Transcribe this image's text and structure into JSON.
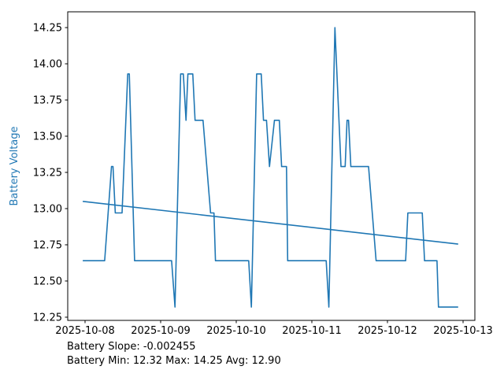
{
  "figure": {
    "background_color": "#ffffff",
    "line_color": "#1f77b4",
    "trend_color": "#1f77b4",
    "axis_color": "#000000"
  },
  "chart_data": {
    "type": "line",
    "title": "",
    "xlabel": "",
    "ylabel": "Battery Voltage",
    "ylabel_color": "#1f77b4",
    "grid": false,
    "legend": "none",
    "x_unit": "days since 2025-10-08",
    "x_tick_days": [
      0,
      1,
      2,
      3,
      4,
      5
    ],
    "x_tick_labels": [
      "2025-10-08",
      "2025-10-09",
      "2025-10-10",
      "2025-10-11",
      "2025-10-12",
      "2025-10-13"
    ],
    "y_ticks": [
      12.25,
      12.5,
      12.75,
      13.0,
      13.25,
      13.5,
      13.75,
      14.0,
      14.25
    ],
    "xlim_days": [
      -0.229,
      5.156
    ],
    "ylim": [
      12.228,
      14.359
    ],
    "voltage_levels": [
      12.32,
      12.64,
      12.97,
      13.29,
      13.61,
      13.93,
      14.25
    ],
    "series": [
      {
        "name": "battery-voltage",
        "points": [
          [
            -0.03,
            12.64
          ],
          [
            0.26,
            12.64
          ],
          [
            0.35,
            13.29
          ],
          [
            0.37,
            13.29
          ],
          [
            0.4,
            12.97
          ],
          [
            0.49,
            12.97
          ],
          [
            0.565,
            13.93
          ],
          [
            0.585,
            13.93
          ],
          [
            0.655,
            12.64
          ],
          [
            1.145,
            12.64
          ],
          [
            1.19,
            12.32
          ],
          [
            1.265,
            13.93
          ],
          [
            1.3,
            13.93
          ],
          [
            1.335,
            13.61
          ],
          [
            1.36,
            13.93
          ],
          [
            1.425,
            13.93
          ],
          [
            1.455,
            13.61
          ],
          [
            1.56,
            13.61
          ],
          [
            1.66,
            12.97
          ],
          [
            1.705,
            12.97
          ],
          [
            1.725,
            12.64
          ],
          [
            2.165,
            12.64
          ],
          [
            2.2,
            12.32
          ],
          [
            2.27,
            13.93
          ],
          [
            2.33,
            13.93
          ],
          [
            2.36,
            13.61
          ],
          [
            2.4,
            13.61
          ],
          [
            2.44,
            13.29
          ],
          [
            2.505,
            13.61
          ],
          [
            2.57,
            13.61
          ],
          [
            2.6,
            13.29
          ],
          [
            2.665,
            13.29
          ],
          [
            2.68,
            12.64
          ],
          [
            3.19,
            12.64
          ],
          [
            3.225,
            12.32
          ],
          [
            3.305,
            14.25
          ],
          [
            3.385,
            13.29
          ],
          [
            3.44,
            13.29
          ],
          [
            3.465,
            13.61
          ],
          [
            3.485,
            13.61
          ],
          [
            3.515,
            13.29
          ],
          [
            3.75,
            13.29
          ],
          [
            3.85,
            12.64
          ],
          [
            4.24,
            12.64
          ],
          [
            4.27,
            12.97
          ],
          [
            4.46,
            12.97
          ],
          [
            4.49,
            12.64
          ],
          [
            4.655,
            12.64
          ],
          [
            4.675,
            12.32
          ],
          [
            4.935,
            12.32
          ]
        ]
      },
      {
        "name": "trend",
        "points": [
          [
            -0.03,
            13.05
          ],
          [
            4.935,
            12.755
          ]
        ]
      }
    ],
    "footer_lines": {
      "slope_line": "Battery Slope: -0.002455",
      "stats_line": "Battery Min: 12.32 Max: 14.25 Avg: 12.90"
    },
    "stats": {
      "slope": -0.002455,
      "min": 12.32,
      "max": 14.25,
      "avg": 12.9
    }
  }
}
